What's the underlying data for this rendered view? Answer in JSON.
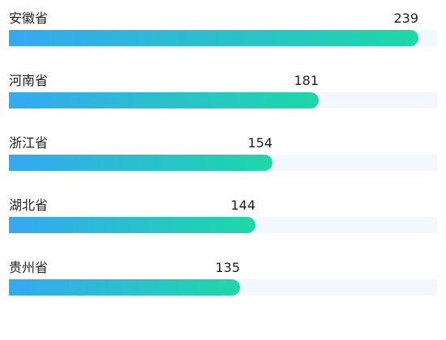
{
  "chart_data": {
    "type": "bar",
    "orientation": "horizontal",
    "categories": [
      "安徽省",
      "河南省",
      "浙江省",
      "湖北省",
      "贵州省"
    ],
    "values": [
      239,
      181,
      154,
      144,
      135
    ],
    "title": "",
    "xlabel": "",
    "ylabel": "",
    "xlim": [
      0,
      250
    ],
    "grid": false,
    "legend": "none",
    "colors": {
      "bar_gradient_start": "#35a8f3",
      "bar_gradient_end": "#1ed8a8",
      "track": "#f3f7ff",
      "text": "#1f1f1f"
    }
  }
}
